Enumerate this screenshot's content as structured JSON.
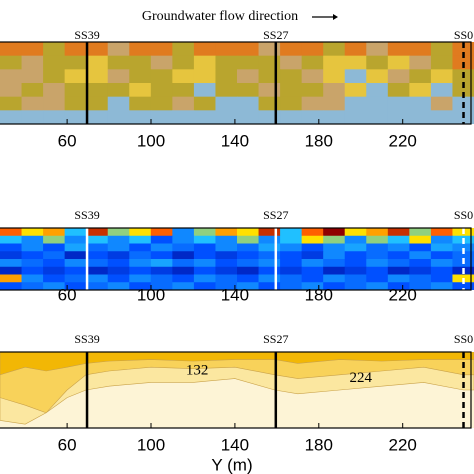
{
  "chart_data": [
    {
      "type": "heatmap",
      "title": "Groundwater flow direction",
      "xlim": [
        28,
        254
      ],
      "xticks": [
        60,
        100,
        140,
        180,
        220
      ],
      "colors": [
        "#e07b1f",
        "#c9a46a",
        "#b9a52e",
        "#e6c53e",
        "#8db9d6"
      ],
      "z": [
        [
          0,
          0,
          2,
          0,
          0,
          1,
          0,
          0,
          2,
          0,
          0,
          0,
          1,
          0,
          0,
          2,
          0,
          1,
          0,
          0,
          2,
          0
        ],
        [
          2,
          1,
          2,
          2,
          3,
          2,
          2,
          1,
          2,
          3,
          2,
          2,
          2,
          1,
          2,
          3,
          3,
          2,
          3,
          1,
          2,
          0
        ],
        [
          1,
          1,
          2,
          3,
          3,
          1,
          2,
          2,
          3,
          3,
          2,
          1,
          2,
          2,
          1,
          3,
          4,
          3,
          1,
          2,
          3,
          2
        ],
        [
          1,
          2,
          1,
          2,
          2,
          2,
          3,
          2,
          2,
          4,
          2,
          2,
          1,
          2,
          2,
          1,
          3,
          4,
          2,
          3,
          4,
          2
        ],
        [
          2,
          1,
          1,
          2,
          2,
          4,
          2,
          2,
          1,
          2,
          4,
          4,
          2,
          2,
          1,
          1,
          4,
          4,
          4,
          4,
          1,
          4
        ],
        [
          4,
          4,
          4,
          4,
          4,
          4,
          4,
          4,
          4,
          4,
          4,
          4,
          4,
          4,
          4,
          4,
          4,
          4,
          4,
          4,
          4,
          4
        ]
      ],
      "wells": [
        {
          "label": "SS39",
          "x": 69.5
        },
        {
          "label": "SS27",
          "x": 159.5
        },
        {
          "label": "SS0",
          "x": 249,
          "dashed": true
        }
      ],
      "well_color": "#000000"
    },
    {
      "type": "heatmap",
      "xlim": [
        28,
        254
      ],
      "xticks": [
        60,
        100,
        140,
        180,
        220
      ],
      "colorscale": [
        "#00008f",
        "#0050ff",
        "#20c0ff",
        "#ffe000",
        "#ff6000",
        "#900000"
      ],
      "z": [
        [
          0.8,
          0.6,
          0.7,
          0.4,
          0.9,
          0.5,
          0.6,
          0.8,
          0.3,
          0.5,
          0.7,
          0.6,
          0.9,
          0.4,
          0.8,
          1.0,
          0.6,
          0.7,
          0.9,
          0.5,
          0.8,
          0.6
        ],
        [
          0.4,
          0.3,
          0.5,
          0.3,
          0.4,
          0.3,
          0.4,
          0.2,
          0.3,
          0.4,
          0.3,
          0.5,
          0.3,
          0.4,
          0.6,
          0.5,
          0.3,
          0.5,
          0.4,
          0.6,
          0.3,
          0.4
        ],
        [
          0.2,
          0.3,
          0.2,
          0.35,
          0.25,
          0.3,
          0.2,
          0.3,
          0.25,
          0.2,
          0.3,
          0.25,
          0.35,
          0.3,
          0.2,
          0.3,
          0.35,
          0.25,
          0.3,
          0.2,
          0.35,
          0.3
        ],
        [
          0.15,
          0.2,
          0.25,
          0.1,
          0.2,
          0.15,
          0.25,
          0.2,
          0.1,
          0.2,
          0.15,
          0.2,
          0.25,
          0.2,
          0.15,
          0.3,
          0.2,
          0.25,
          0.2,
          0.3,
          0.2,
          0.25
        ],
        [
          0.3,
          0.25,
          0.2,
          0.3,
          0.25,
          0.2,
          0.3,
          0.35,
          0.25,
          0.3,
          0.2,
          0.25,
          0.3,
          0.2,
          0.3,
          0.25,
          0.2,
          0.3,
          0.25,
          0.2,
          0.3,
          0.25
        ],
        [
          0.1,
          0.2,
          0.15,
          0.2,
          0.1,
          0.15,
          0.2,
          0.15,
          0.1,
          0.2,
          0.15,
          0.1,
          0.2,
          0.15,
          0.2,
          0.1,
          0.15,
          0.2,
          0.1,
          0.15,
          0.2,
          0.1
        ],
        [
          0.7,
          0.3,
          0.2,
          0.25,
          0.3,
          0.2,
          0.3,
          0.25,
          0.2,
          0.3,
          0.25,
          0.2,
          0.3,
          0.25,
          0.2,
          0.3,
          0.25,
          0.2,
          0.3,
          0.25,
          0.2,
          0.6
        ],
        [
          0.2,
          0.25,
          0.3,
          0.2,
          0.25,
          0.3,
          0.2,
          0.25,
          0.3,
          0.2,
          0.25,
          0.3,
          0.2,
          0.25,
          0.3,
          0.2,
          0.25,
          0.3,
          0.2,
          0.25,
          0.3,
          0.2
        ]
      ],
      "wells": [
        {
          "label": "SS39",
          "x": 69.5
        },
        {
          "label": "SS27",
          "x": 159.5
        },
        {
          "label": "SS0",
          "x": 249,
          "dashed": true
        }
      ],
      "well_color": "#ffffff"
    },
    {
      "type": "contour",
      "xlabel": "Y (m)",
      "xlim": [
        28,
        254
      ],
      "xticks": [
        60,
        100,
        140,
        180,
        220
      ],
      "ylim": [
        0,
        1
      ],
      "background": "#fdf4d6",
      "x": [
        28,
        40,
        50,
        60,
        69,
        80,
        100,
        120,
        140,
        159,
        170,
        190,
        210,
        230,
        249,
        254
      ],
      "series": [
        {
          "color": "#fbe7a0",
          "values": [
            0.9,
            0.95,
            0.8,
            0.6,
            0.5,
            0.45,
            0.4,
            0.4,
            0.35,
            0.5,
            0.55,
            0.5,
            0.45,
            0.4,
            0.5,
            0.5
          ]
        },
        {
          "color": "#f8d25a",
          "values": [
            0.6,
            0.7,
            0.8,
            0.5,
            0.3,
            0.25,
            0.2,
            0.22,
            0.2,
            0.3,
            0.35,
            0.3,
            0.25,
            0.2,
            0.3,
            0.3
          ]
        },
        {
          "color": "#f2b705",
          "values": [
            0.3,
            0.2,
            0.25,
            0.2,
            0.15,
            0.12,
            0.1,
            0.12,
            0.1,
            0.1,
            0.15,
            0.1,
            0.12,
            0.1,
            0.1,
            0.1
          ]
        }
      ],
      "annotations": [
        {
          "text": "132",
          "x": 122,
          "y": 0.25
        },
        {
          "text": "224",
          "x": 200,
          "y": 0.35
        }
      ],
      "wells": [
        {
          "label": "SS39",
          "x": 69.5
        },
        {
          "label": "SS27",
          "x": 159.5
        },
        {
          "label": "SS0",
          "x": 249,
          "dashed": true
        }
      ],
      "well_color": "#000000"
    }
  ]
}
